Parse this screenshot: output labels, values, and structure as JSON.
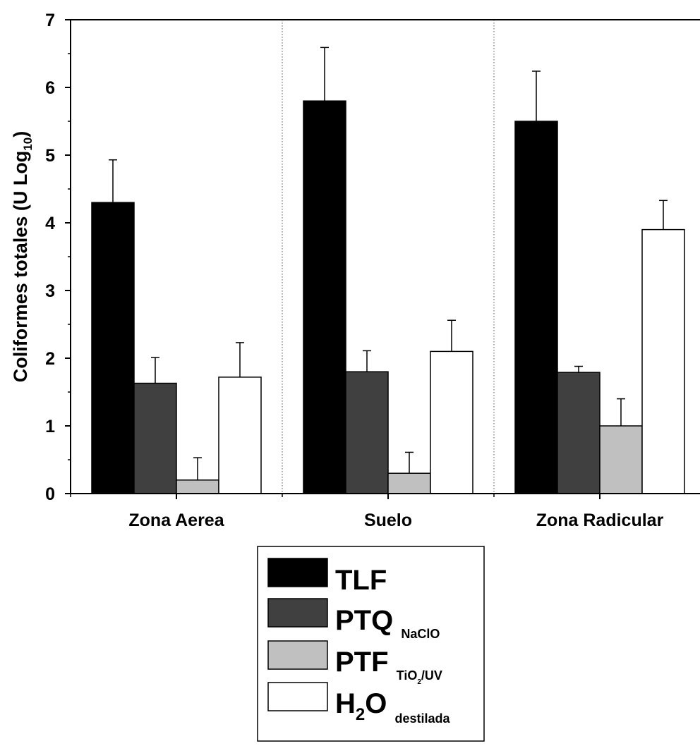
{
  "chart_data": {
    "type": "bar",
    "categories": [
      "Zona Aerea",
      "Suelo",
      "Zona Radicular"
    ],
    "ylabel": "Coliformes totales (U Log10)",
    "ylabel_parts": {
      "main": "Coliformes totales (U Log",
      "sub": "10",
      "close": ")"
    },
    "xlabel": "",
    "ylim": [
      0,
      7
    ],
    "yticks": [
      "0",
      "1",
      "2",
      "3",
      "4",
      "5",
      "6",
      "7"
    ],
    "grid": false,
    "separators": "dotted vertical lines between categories",
    "series": [
      {
        "name": "TLF",
        "color": "#000000",
        "values": [
          4.3,
          5.8,
          5.5
        ],
        "errors": [
          0.63,
          0.79,
          0.74
        ]
      },
      {
        "name": "PTQ NaClO",
        "color": "#404040",
        "values": [
          1.63,
          1.8,
          1.79
        ],
        "errors": [
          0.38,
          0.31,
          0.09
        ]
      },
      {
        "name": "PTF TiO2/UV",
        "color": "#c0c0c0",
        "values": [
          0.2,
          0.3,
          1.0
        ],
        "errors": [
          0.33,
          0.31,
          0.4
        ]
      },
      {
        "name": "H2O destilada",
        "color": "#ffffff",
        "values": [
          1.72,
          2.1,
          3.9
        ],
        "errors": [
          0.51,
          0.46,
          0.43
        ]
      }
    ],
    "legend": {
      "placement": "below plot",
      "entries": [
        {
          "main": "TLF",
          "sub": "",
          "sub_tail": "",
          "tail": ""
        },
        {
          "main": "PTQ",
          "sub": "NaClO",
          "sub_tail": "",
          "tail": ""
        },
        {
          "main": "PTF",
          "sub": "TiO",
          "sub2": "2",
          "sub_tail": "/UV",
          "tail": ""
        },
        {
          "main": "H",
          "inner_sub": "2",
          "main2": "O",
          "sub": "destilada"
        }
      ]
    }
  }
}
